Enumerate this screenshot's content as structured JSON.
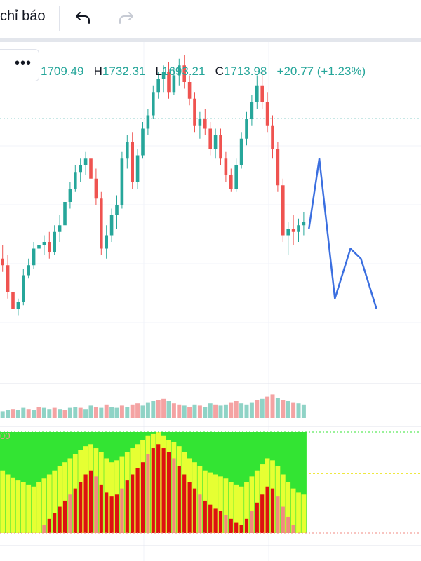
{
  "toolbar": {
    "indicators_label": "chỉ báo",
    "undo_icon": "undo-icon",
    "redo_icon": "redo-icon"
  },
  "legend": {
    "more_icon": "more-dots-icon",
    "open_value": "1709.49",
    "high_key": "H",
    "high_value": "1732.31",
    "low_key": "L",
    "low_value": "1693.21",
    "close_key": "C",
    "close_value": "1713.98",
    "change": "+20.77 (+1.23%)"
  },
  "oscillator": {
    "corner_label": "00"
  },
  "colors": {
    "up": "#26a69a",
    "down": "#ef5350",
    "projection": "#3b6fe0",
    "volume_up": "#8fd3c6",
    "volume_down": "#f4a3a3",
    "osc_green": "#33e433",
    "osc_yellow": "#e6ff33",
    "osc_red": "#dd1111",
    "osc_salmon": "#f08a80"
  },
  "chart_data": [
    {
      "type": "candlestick",
      "title": "",
      "ylim": [
        1560,
        1760
      ],
      "open": 1709.49,
      "high": 1732.31,
      "low": 1693.21,
      "close": 1713.98,
      "candles": [
        [
          1630,
          1638,
          1622,
          1626
        ],
        [
          1626,
          1632,
          1606,
          1610
        ],
        [
          1610,
          1614,
          1596,
          1600
        ],
        [
          1600,
          1606,
          1596,
          1604
        ],
        [
          1604,
          1624,
          1602,
          1620
        ],
        [
          1620,
          1630,
          1618,
          1626
        ],
        [
          1626,
          1640,
          1624,
          1636
        ],
        [
          1636,
          1642,
          1630,
          1638
        ],
        [
          1638,
          1644,
          1632,
          1640
        ],
        [
          1640,
          1646,
          1630,
          1634
        ],
        [
          1634,
          1650,
          1632,
          1646
        ],
        [
          1646,
          1656,
          1640,
          1650
        ],
        [
          1650,
          1668,
          1648,
          1664
        ],
        [
          1664,
          1676,
          1660,
          1672
        ],
        [
          1672,
          1686,
          1670,
          1682
        ],
        [
          1682,
          1690,
          1676,
          1686
        ],
        [
          1686,
          1694,
          1680,
          1690
        ],
        [
          1690,
          1694,
          1674,
          1678
        ],
        [
          1678,
          1684,
          1662,
          1666
        ],
        [
          1666,
          1670,
          1632,
          1636
        ],
        [
          1636,
          1650,
          1630,
          1644
        ],
        [
          1644,
          1660,
          1640,
          1656
        ],
        [
          1656,
          1668,
          1648,
          1662
        ],
        [
          1662,
          1694,
          1660,
          1690
        ],
        [
          1690,
          1704,
          1684,
          1700
        ],
        [
          1700,
          1706,
          1672,
          1676
        ],
        [
          1676,
          1696,
          1672,
          1692
        ],
        [
          1692,
          1712,
          1690,
          1708
        ],
        [
          1708,
          1720,
          1704,
          1716
        ],
        [
          1716,
          1734,
          1714,
          1730
        ],
        [
          1730,
          1742,
          1726,
          1738
        ],
        [
          1738,
          1746,
          1730,
          1742
        ],
        [
          1742,
          1748,
          1726,
          1730
        ],
        [
          1730,
          1744,
          1728,
          1740
        ],
        [
          1740,
          1750,
          1734,
          1746
        ],
        [
          1746,
          1752,
          1732,
          1736
        ],
        [
          1736,
          1740,
          1722,
          1726
        ],
        [
          1726,
          1730,
          1706,
          1710
        ],
        [
          1710,
          1718,
          1702,
          1714
        ],
        [
          1714,
          1720,
          1704,
          1708
        ],
        [
          1708,
          1712,
          1692,
          1696
        ],
        [
          1696,
          1708,
          1690,
          1704
        ],
        [
          1704,
          1708,
          1686,
          1690
        ],
        [
          1690,
          1694,
          1676,
          1680
        ],
        [
          1680,
          1684,
          1670,
          1672
        ],
        [
          1672,
          1690,
          1670,
          1686
        ],
        [
          1686,
          1706,
          1684,
          1702
        ],
        [
          1702,
          1718,
          1698,
          1714
        ],
        [
          1714,
          1728,
          1710,
          1724
        ],
        [
          1724,
          1740,
          1720,
          1734
        ],
        [
          1734,
          1742,
          1720,
          1724
        ],
        [
          1724,
          1730,
          1706,
          1710
        ],
        [
          1710,
          1716,
          1690,
          1696
        ],
        [
          1696,
          1700,
          1670,
          1674
        ],
        [
          1674,
          1678,
          1640,
          1644
        ],
        [
          1644,
          1652,
          1632,
          1648
        ],
        [
          1648,
          1656,
          1638,
          1646
        ],
        [
          1646,
          1654,
          1640,
          1650
        ],
        [
          1650,
          1658,
          1644,
          1652
        ]
      ]
    },
    {
      "type": "line",
      "title": "",
      "series": [
        {
          "x": [
            59,
            61,
            64,
            67,
            69,
            72
          ],
          "values": [
            1648,
            1690,
            1606,
            1636,
            1630,
            1600
          ]
        }
      ]
    },
    {
      "type": "bar",
      "title": "",
      "values": [
        6,
        7,
        8,
        7,
        9,
        8,
        7,
        10,
        9,
        8,
        9,
        8,
        7,
        9,
        10,
        9,
        8,
        11,
        10,
        9,
        12,
        10,
        9,
        11,
        10,
        12,
        13,
        11,
        14,
        15,
        16,
        17,
        15,
        13,
        12,
        11,
        10,
        12,
        11,
        10,
        13,
        12,
        11,
        12,
        14,
        15,
        13,
        12,
        14,
        16,
        17,
        19,
        21,
        18,
        16,
        15,
        14,
        13,
        12
      ],
      "directions": [
        1,
        1,
        0,
        1,
        1,
        0,
        1,
        0,
        1,
        1,
        0,
        1,
        0,
        1,
        1,
        0,
        1,
        1,
        0,
        1,
        0,
        1,
        1,
        0,
        1,
        0,
        0,
        1,
        1,
        1,
        0,
        0,
        1,
        0,
        0,
        1,
        0,
        1,
        0,
        1,
        1,
        0,
        1,
        1,
        0,
        0,
        1,
        1,
        1,
        0,
        1,
        0,
        0,
        1,
        0,
        1,
        0,
        1,
        1
      ]
    },
    {
      "type": "bar",
      "title": "",
      "ylim": [
        0,
        100
      ],
      "series": [
        {
          "values": [
            62,
            58,
            55,
            52,
            50,
            48,
            46,
            50,
            54,
            58,
            62,
            66,
            70,
            74,
            78,
            82,
            86,
            88,
            84,
            80,
            74,
            70,
            72,
            76,
            80,
            84,
            88,
            92,
            96,
            98,
            100,
            96,
            92,
            90,
            86,
            80,
            74,
            70,
            66,
            62,
            60,
            58,
            56,
            54,
            50,
            48,
            46,
            50,
            56,
            62,
            68,
            74,
            72,
            66,
            58,
            50,
            44,
            40,
            38
          ]
        },
        {
          "values": [
            0,
            0,
            0,
            0,
            0,
            0,
            0,
            0,
            8,
            14,
            20,
            26,
            32,
            38,
            44,
            50,
            58,
            62,
            56,
            48,
            40,
            36,
            38,
            44,
            52,
            58,
            64,
            70,
            78,
            84,
            88,
            84,
            80,
            74,
            66,
            58,
            50,
            44,
            38,
            32,
            28,
            24,
            22,
            18,
            14,
            10,
            8,
            14,
            22,
            30,
            38,
            46,
            44,
            36,
            26,
            16,
            8,
            0,
            0
          ]
        }
      ]
    }
  ]
}
